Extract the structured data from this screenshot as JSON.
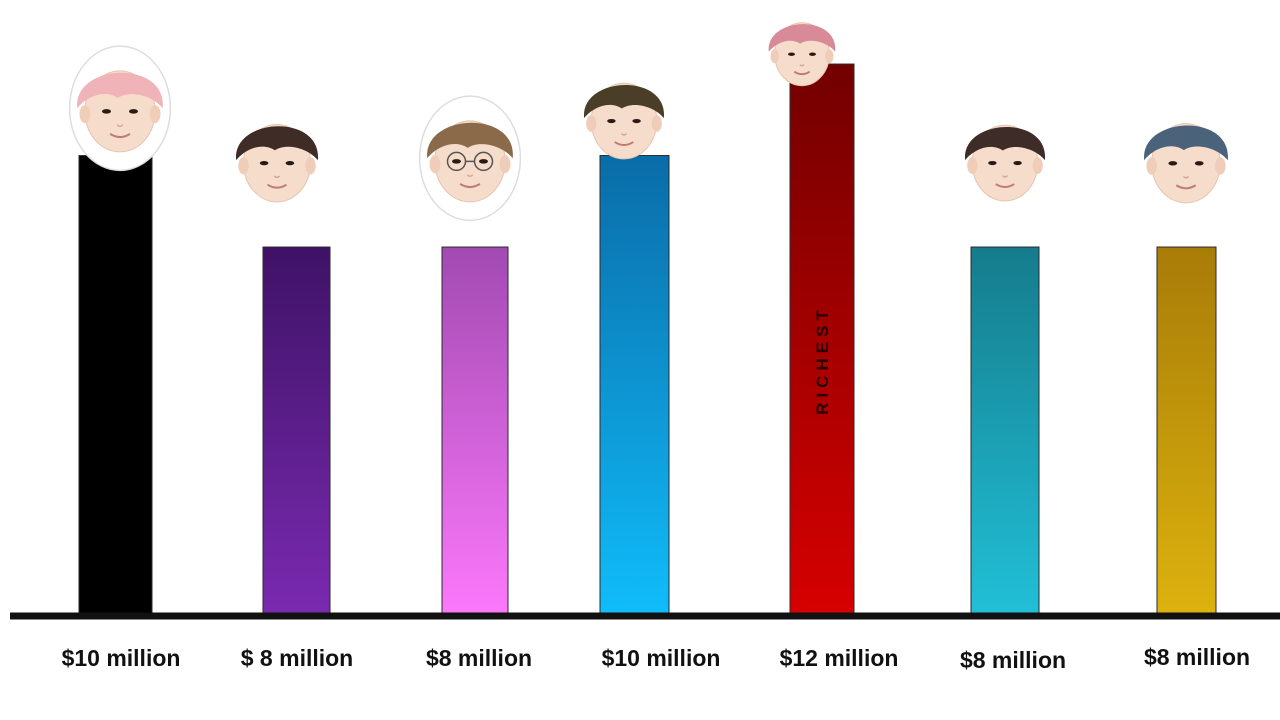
{
  "chart_data": {
    "type": "bar",
    "title": "",
    "xlabel": "",
    "ylabel": "",
    "ylim": [
      0,
      13.4
    ],
    "grid": false,
    "legend": "none",
    "values": [
      10,
      8,
      8,
      10,
      12,
      8,
      8
    ],
    "labels": [
      "$10 million",
      "$ 8 million",
      "$8 million",
      "$10 million",
      "$12 million",
      "$8 million",
      "$8 million"
    ],
    "bar_colors": [
      [
        "#000000",
        "#000000"
      ],
      [
        "#3e1266",
        "#7a2ab0"
      ],
      [
        "#a24ab2",
        "#fb78fb"
      ],
      [
        "#0a6ca8",
        "#10bcfa"
      ],
      [
        "#720000",
        "#d60000"
      ],
      [
        "#157c8c",
        "#21bfd6"
      ],
      [
        "#a87c08",
        "#dcb20e"
      ]
    ],
    "hair_colors": [
      "#f0b4b8",
      "#3f2c26",
      "#8a6a48",
      "#4a3e28",
      "#d88a98",
      "#3e2c28",
      "#4a627a"
    ],
    "annotation": {
      "bar": 4,
      "text": "RICHEST"
    },
    "icons": [
      "member-face-icon",
      "member-face-icon",
      "member-face-icon",
      "member-face-icon",
      "member-face-icon",
      "member-face-icon",
      "member-face-icon"
    ]
  }
}
